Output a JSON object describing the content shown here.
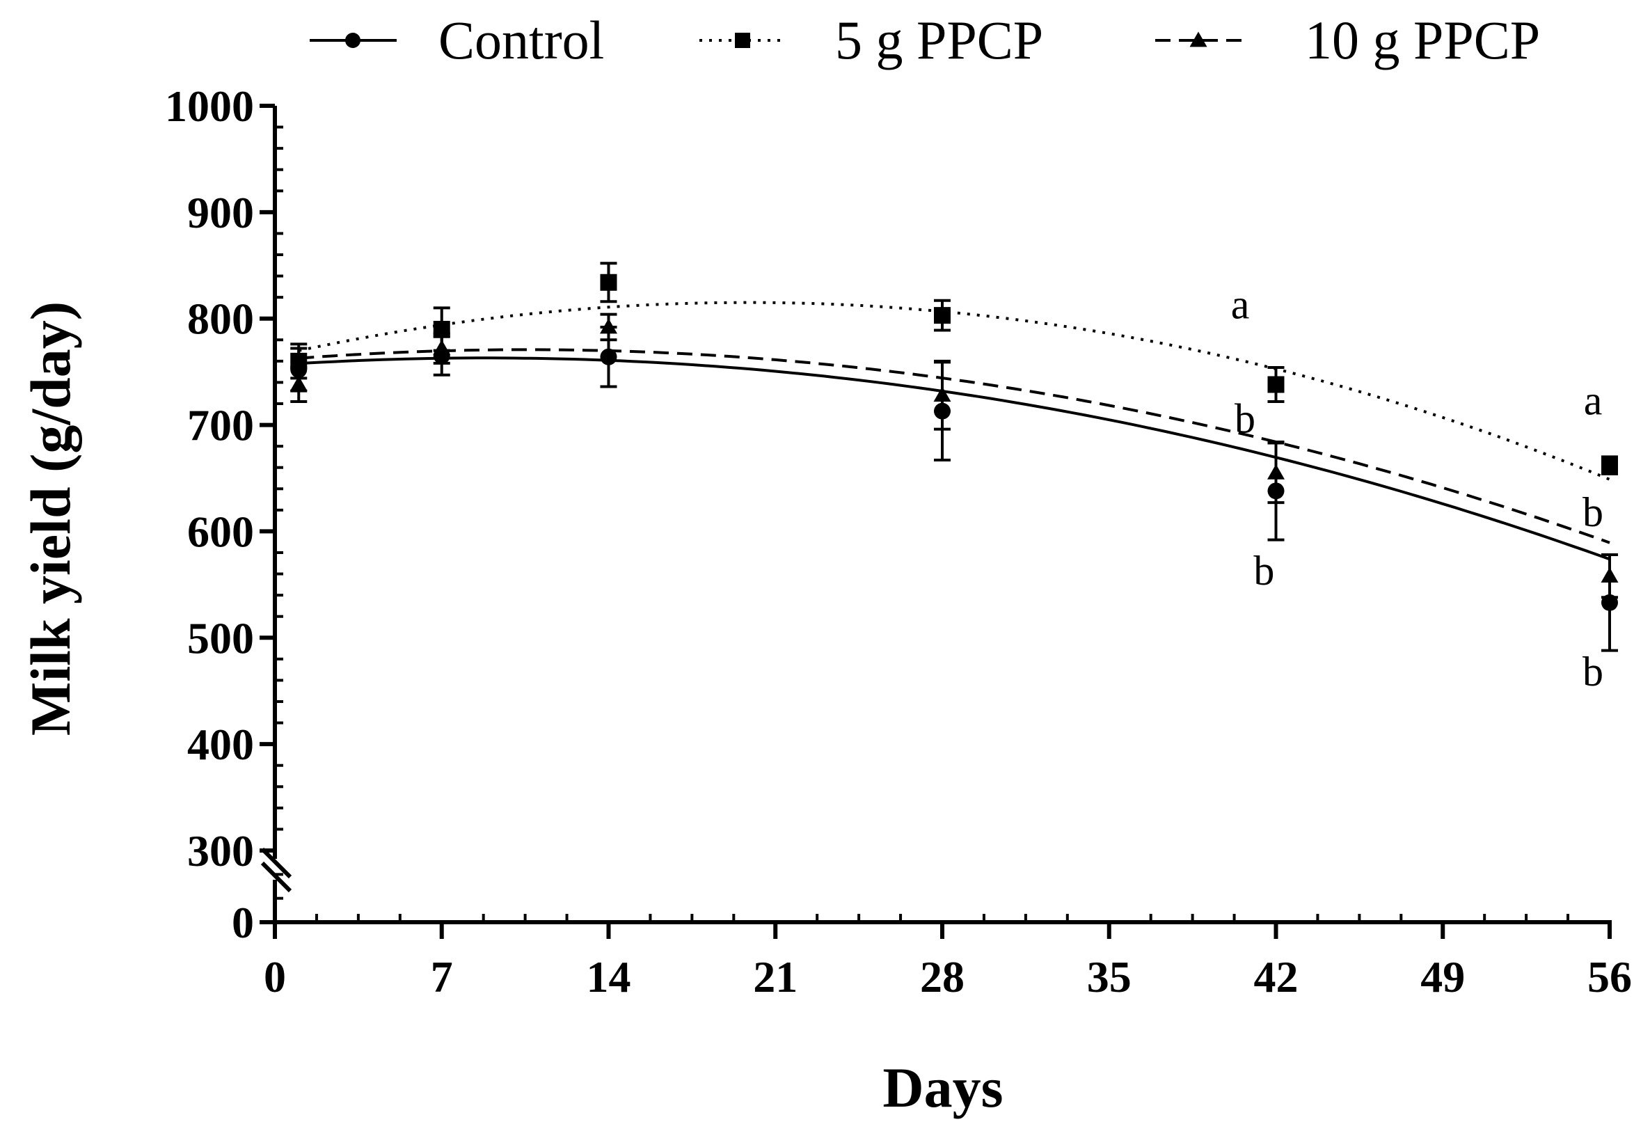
{
  "chart_data": {
    "type": "line",
    "title": "",
    "xlabel": "Days",
    "ylabel": "Milk yield (g/day)",
    "xlim": [
      0,
      56
    ],
    "ylim": [
      0,
      1000
    ],
    "axis_break": "between 0 and 300",
    "xticks": [
      0,
      7,
      14,
      21,
      28,
      35,
      42,
      49,
      56
    ],
    "xtick_labels": [
      "0",
      "7",
      "14",
      "21",
      "28",
      "35",
      "42",
      "49",
      "56"
    ],
    "yticks": [
      0,
      300,
      400,
      500,
      600,
      700,
      800,
      900,
      1000
    ],
    "ytick_labels": [
      "0",
      "300",
      "400",
      "500",
      "600",
      "700",
      "800",
      "900",
      "1000"
    ],
    "legend_position": "top",
    "grid": false,
    "series": [
      {
        "name": "Control",
        "marker": "circle",
        "line_style": "solid",
        "x": [
          1,
          7,
          14,
          28,
          42,
          56
        ],
        "values": [
          752,
          765,
          764,
          713,
          638,
          533
        ],
        "errors": [
          20,
          18,
          28,
          46,
          46,
          45
        ],
        "fit": [
          -0.0851,
          1.508,
          756.3
        ]
      },
      {
        "name": "5 g PPCP",
        "marker": "square",
        "line_style": "dotted",
        "x": [
          1,
          7,
          14,
          28,
          42,
          56
        ],
        "values": [
          760,
          790,
          834,
          803,
          738,
          662
        ],
        "errors": [
          16,
          20,
          18,
          14,
          16,
          8
        ],
        "fit": [
          -0.1273,
          5.056,
          764.9
        ]
      },
      {
        "name": "10 g PPCP",
        "marker": "triangle",
        "line_style": "dashed",
        "x": [
          1,
          7,
          14,
          28,
          42,
          56
        ],
        "values": [
          738,
          772,
          792,
          728,
          655,
          558
        ],
        "errors": [
          16,
          14,
          12,
          32,
          28,
          20
        ],
        "fit": [
          -0.088,
          1.865,
          760.9
        ]
      }
    ],
    "annotations": [
      {
        "text": "a",
        "x": 40.5,
        "y": 800
      },
      {
        "text": "b",
        "x": 40.7,
        "y": 693
      },
      {
        "text": "b",
        "x": 41.5,
        "y": 550
      },
      {
        "text": "a",
        "x": 55.3,
        "y": 710
      },
      {
        "text": "b",
        "x": 55.3,
        "y": 605
      },
      {
        "text": "b",
        "x": 55.3,
        "y": 455
      }
    ]
  }
}
